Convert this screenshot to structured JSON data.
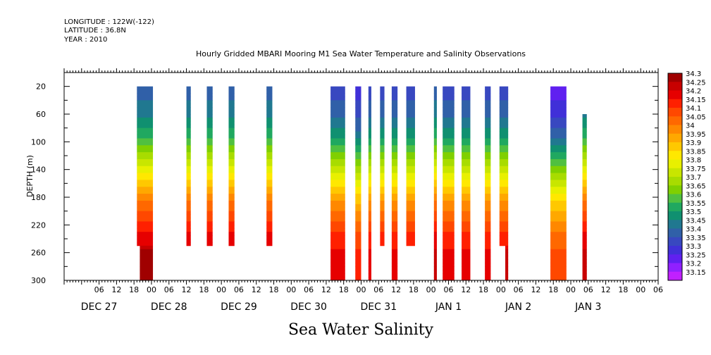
{
  "header": {
    "longitude": "LONGITUDE : 122W(-122)",
    "latitude": "LATITUDE : 36.8N",
    "year": "YEAR : 2010",
    "title": "Hourly Gridded MBARI Mooring M1 Sea Water Temperature and Salinity Observations"
  },
  "footer": {
    "variable_label": "Sea Water Salinity"
  },
  "chart_data": {
    "type": "heatmap",
    "title": "Hourly Gridded MBARI Mooring M1 Sea Water Temperature and Salinity Observations",
    "xlabel": "",
    "ylabel": "DEPTH (m)",
    "x_units": "hours after Dec 26 2010 18:00",
    "xlim": [
      0,
      204
    ],
    "ylim": [
      0,
      300
    ],
    "y_inverted": true,
    "y_ticks": [
      20,
      60,
      100,
      140,
      180,
      220,
      260,
      300
    ],
    "x_hour_ticks": [
      "06",
      "12",
      "18",
      "00",
      "06",
      "12",
      "18",
      "00",
      "06",
      "12",
      "18",
      "00",
      "06",
      "12",
      "18",
      "00",
      "06",
      "12",
      "18",
      "00",
      "06",
      "12",
      "18",
      "00",
      "06",
      "12",
      "18",
      "00",
      "06",
      "12",
      "18",
      "00",
      "06"
    ],
    "x_day_labels": [
      {
        "label": "DEC 27",
        "hour": 12
      },
      {
        "label": "DEC 28",
        "hour": 36
      },
      {
        "label": "DEC 29",
        "hour": 60
      },
      {
        "label": "DEC 30",
        "hour": 84
      },
      {
        "label": "DEC 31",
        "hour": 108
      },
      {
        "label": "JAN  1",
        "hour": 132
      },
      {
        "label": "JAN  2",
        "hour": 156
      },
      {
        "label": "JAN  3",
        "hour": 180
      }
    ],
    "colorbar": {
      "levels": [
        "34.3",
        "34.25",
        "34.2",
        "34.15",
        "34.1",
        "34.05",
        "34",
        "33.95",
        "33.9",
        "33.85",
        "33.8",
        "33.75",
        "33.7",
        "33.65",
        "33.6",
        "33.55",
        "33.5",
        "33.45",
        "33.4",
        "33.35",
        "33.3",
        "33.25",
        "33.2",
        "33.15"
      ],
      "colors": [
        "#a00000",
        "#c80000",
        "#e60000",
        "#ff2000",
        "#ff4800",
        "#ff6800",
        "#ff8800",
        "#ffa800",
        "#ffc800",
        "#ffe800",
        "#e8f000",
        "#c8e600",
        "#a8dc00",
        "#80d000",
        "#50c040",
        "#20a860",
        "#109070",
        "#207890",
        "#3060a8",
        "#3848c0",
        "#4030d8",
        "#6020f0",
        "#9020ff",
        "#c020ff"
      ]
    },
    "profile": [
      {
        "depth": 20,
        "salinity": 33.4
      },
      {
        "depth": 60,
        "salinity": 33.45
      },
      {
        "depth": 90,
        "salinity": 33.55
      },
      {
        "depth": 120,
        "salinity": 33.7
      },
      {
        "depth": 150,
        "salinity": 33.85
      },
      {
        "depth": 180,
        "salinity": 34.0
      },
      {
        "depth": 210,
        "salinity": 34.1
      },
      {
        "depth": 240,
        "salinity": 34.2
      },
      {
        "depth": 270,
        "salinity": 34.25
      },
      {
        "depth": 300,
        "salinity": 34.25
      }
    ],
    "columns": [
      {
        "t0": 25.0,
        "t1": 30.5,
        "d0": 20,
        "d1": 250,
        "offset": 0.0
      },
      {
        "t0": 26.0,
        "t1": 30.5,
        "d0": 250,
        "d1": 300,
        "offset": 0.05
      },
      {
        "t0": 42.0,
        "t1": 43.5,
        "d0": 20,
        "d1": 250,
        "offset": 0.0
      },
      {
        "t0": 49.0,
        "t1": 51.0,
        "d0": 20,
        "d1": 250,
        "offset": 0.0
      },
      {
        "t0": 56.5,
        "t1": 58.5,
        "d0": 20,
        "d1": 250,
        "offset": 0.0
      },
      {
        "t0": 69.5,
        "t1": 71.5,
        "d0": 20,
        "d1": 250,
        "offset": 0.0
      },
      {
        "t0": 91.5,
        "t1": 96.5,
        "d0": 20,
        "d1": 300,
        "offset": -0.05
      },
      {
        "t0": 100.0,
        "t1": 102.0,
        "d0": 20,
        "d1": 300,
        "offset": -0.1
      },
      {
        "t0": 104.5,
        "t1": 105.5,
        "d0": 20,
        "d1": 300,
        "offset": -0.05
      },
      {
        "t0": 108.5,
        "t1": 110.0,
        "d0": 20,
        "d1": 250,
        "offset": -0.05
      },
      {
        "t0": 112.5,
        "t1": 114.5,
        "d0": 20,
        "d1": 300,
        "offset": -0.05
      },
      {
        "t0": 117.5,
        "t1": 120.5,
        "d0": 20,
        "d1": 250,
        "offset": -0.05
      },
      {
        "t0": 127.0,
        "t1": 128.0,
        "d0": 20,
        "d1": 300,
        "offset": 0.0
      },
      {
        "t0": 130.0,
        "t1": 134.0,
        "d0": 20,
        "d1": 300,
        "offset": -0.05
      },
      {
        "t0": 136.5,
        "t1": 139.5,
        "d0": 20,
        "d1": 300,
        "offset": -0.05
      },
      {
        "t0": 144.5,
        "t1": 146.5,
        "d0": 20,
        "d1": 300,
        "offset": -0.05
      },
      {
        "t0": 149.5,
        "t1": 152.5,
        "d0": 20,
        "d1": 250,
        "offset": -0.05
      },
      {
        "t0": 151.5,
        "t1": 152.5,
        "d0": 250,
        "d1": 300,
        "offset": 0.0
      },
      {
        "t0": 167.0,
        "t1": 172.5,
        "d0": 20,
        "d1": 300,
        "offset": -0.15
      },
      {
        "t0": 178.0,
        "t1": 179.5,
        "d0": 60,
        "d1": 300,
        "offset": 0.0
      }
    ]
  }
}
